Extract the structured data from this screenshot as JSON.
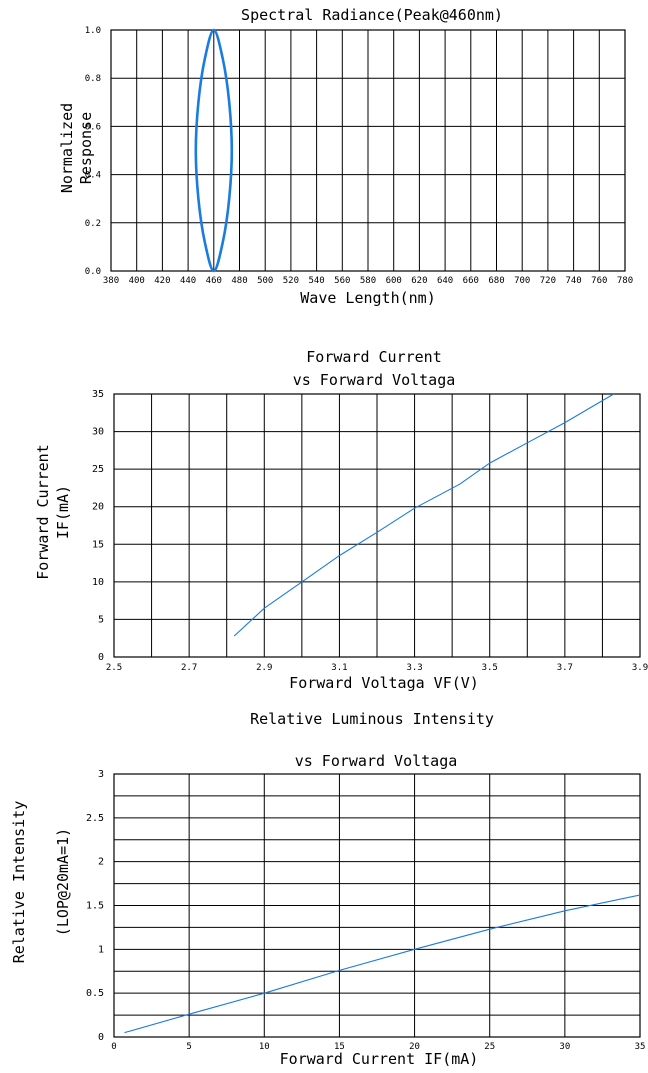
{
  "chart_data": [
    {
      "type": "line",
      "title": "Spectral Radiance(Peak@460nm)",
      "xlabel": "Wave Length(nm)",
      "ylabel": [
        "Normalized",
        "Response"
      ],
      "x_ticks": [
        "380",
        "400",
        "420",
        "440",
        "460",
        "480",
        "500",
        "520",
        "540",
        "560",
        "580",
        "600",
        "620",
        "640",
        "660",
        "680",
        "700",
        "720",
        "740",
        "760",
        "780"
      ],
      "y_ticks": [
        "0.0",
        "0.2",
        "0.4",
        "0.6",
        "0.8",
        "1.0"
      ],
      "xlim": [
        380,
        780
      ],
      "ylim": [
        0,
        1
      ],
      "grid": true,
      "series": [
        {
          "color": "#1a7be0",
          "x": [
            460,
            453,
            448,
            446,
            448,
            453,
            460,
            467,
            472,
            474,
            472,
            467,
            460
          ],
          "y": [
            0.0,
            0.12,
            0.3,
            0.5,
            0.7,
            0.88,
            1.0,
            0.88,
            0.7,
            0.5,
            0.3,
            0.12,
            0.0
          ]
        }
      ]
    },
    {
      "type": "line",
      "title": [
        "Forward Current",
        "vs Forward Voltaga"
      ],
      "xlabel": "Forward Voltaga VF(V)",
      "ylabel": [
        "Forward Current",
        "IF(mA)"
      ],
      "x_ticks": [
        "2.5",
        "2.7",
        "2.9",
        "3.1",
        "3.3",
        "3.5",
        "3.7",
        "3.9"
      ],
      "y_ticks": [
        "0",
        "5",
        "10",
        "15",
        "20",
        "25",
        "30",
        "35"
      ],
      "xlim": [
        2.5,
        3.9
      ],
      "ylim": [
        0,
        35
      ],
      "grid": true,
      "series": [
        {
          "color": "#1a7be0",
          "x": [
            2.82,
            2.9,
            3.0,
            3.1,
            3.2,
            3.3,
            3.42,
            3.5,
            3.6,
            3.7,
            3.83
          ],
          "y": [
            2.8,
            6.5,
            10.0,
            13.5,
            16.6,
            19.8,
            23.0,
            25.8,
            28.5,
            31.2,
            35.0
          ]
        }
      ]
    },
    {
      "type": "line",
      "title": [
        "Relative Luminous Intensity",
        "vs Forward Voltaga"
      ],
      "xlabel": "Forward Current IF(mA)",
      "ylabel": [
        "Relative Intensity",
        "(LOP@20mA=1)"
      ],
      "x_ticks": [
        "0",
        "5",
        "10",
        "15",
        "20",
        "25",
        "30",
        "35"
      ],
      "y_ticks": [
        "0",
        "0.5",
        "1",
        "1.5",
        "2",
        "2.5",
        "3"
      ],
      "xlim": [
        0,
        35
      ],
      "ylim": [
        0,
        3
      ],
      "grid": true,
      "series": [
        {
          "color": "#1a7be0",
          "x": [
            0.7,
            5,
            10,
            15,
            20,
            25,
            30,
            35
          ],
          "y": [
            0.05,
            0.26,
            0.5,
            0.76,
            1.0,
            1.23,
            1.44,
            1.62
          ]
        }
      ]
    }
  ]
}
